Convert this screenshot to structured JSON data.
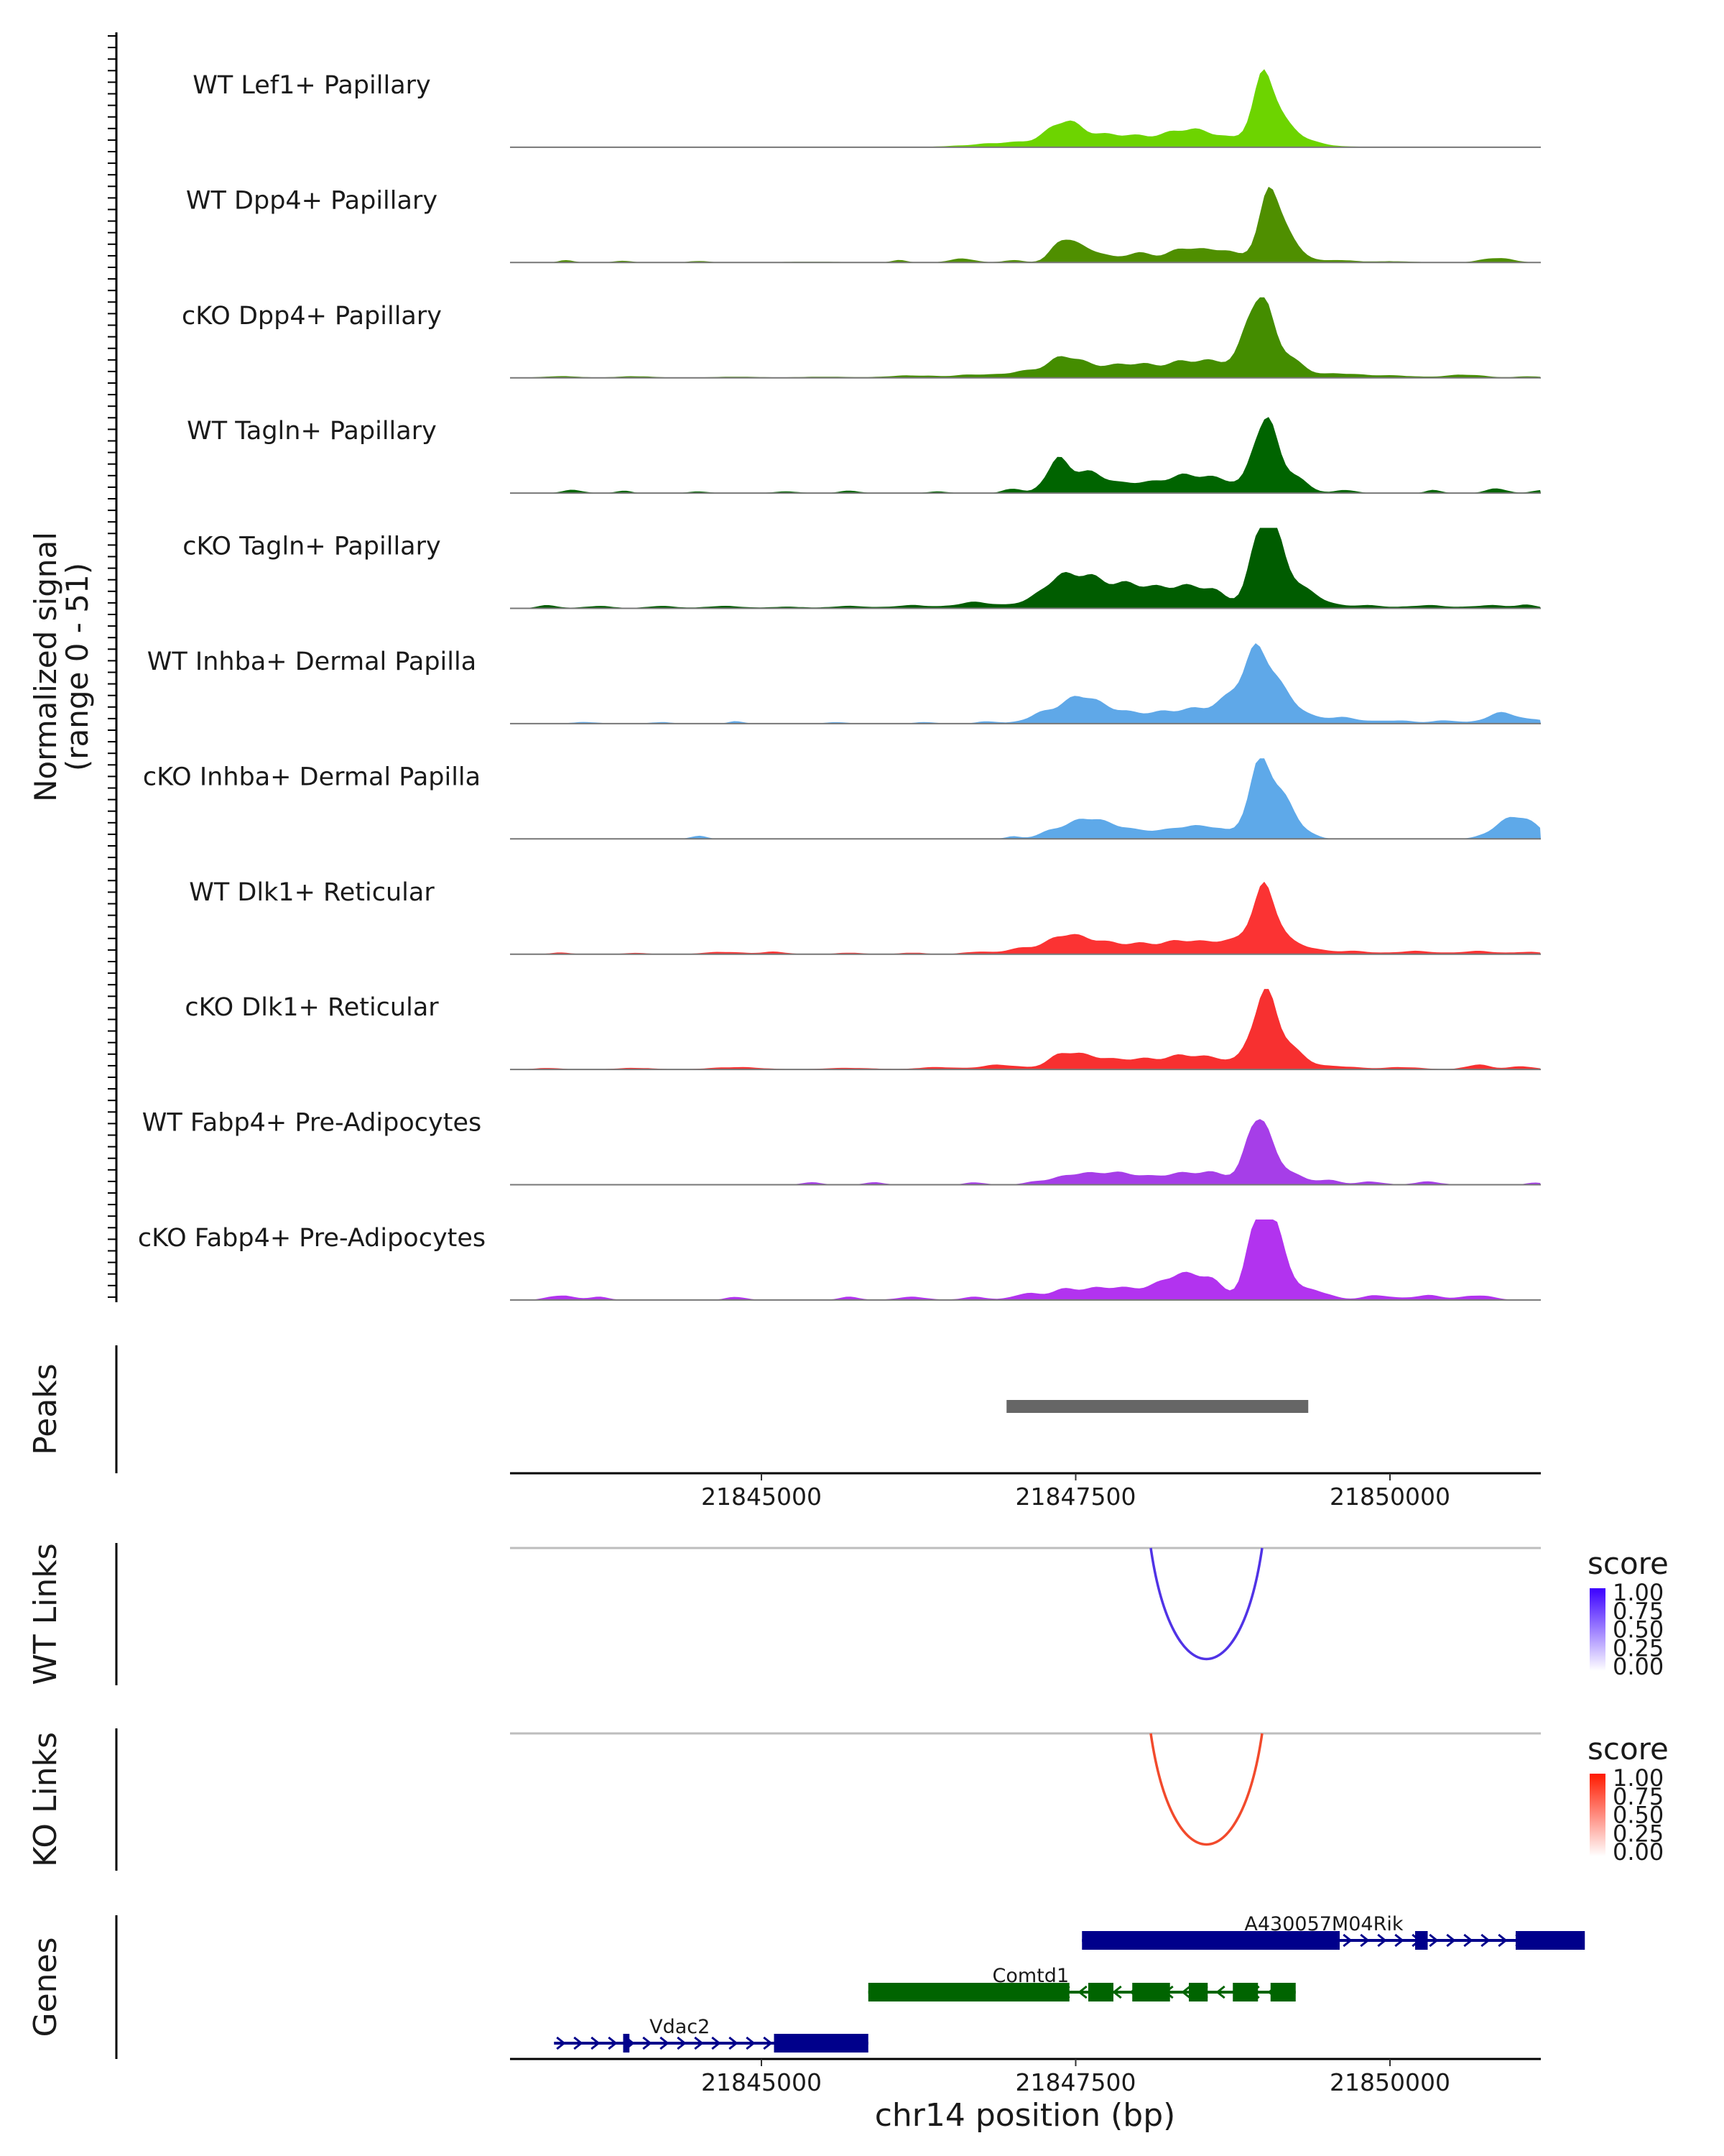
{
  "chart_data": {
    "type": "area",
    "description_free": true,
    "y_axis_label_line1": "Normalized signal",
    "y_axis_label_line2": "(range 0 - 51)",
    "signal_range": [
      0,
      51
    ],
    "x_range": [
      21843000,
      21851200
    ],
    "x_ticks": [
      21845000,
      21847500,
      21850000
    ],
    "x_tick_labels": [
      "21845000",
      "21847500",
      "21850000"
    ],
    "x_axis_title": "chr14 position (bp)",
    "tracks": [
      {
        "name": "WT Lef1+ Papillary",
        "color": "#6dd400",
        "peaks": [
          [
            21843300,
            0.3,
            300
          ],
          [
            21844300,
            0.3,
            300
          ],
          [
            21845400,
            0.4,
            400
          ],
          [
            21846700,
            0.6,
            300
          ],
          [
            21847000,
            2.5,
            250
          ],
          [
            21847400,
            11,
            120
          ],
          [
            21847600,
            7,
            250
          ],
          [
            21848000,
            5,
            200
          ],
          [
            21848350,
            7,
            150
          ],
          [
            21848600,
            7,
            200
          ],
          [
            21849000,
            39,
            90
          ],
          [
            21849150,
            12,
            150
          ],
          [
            21849450,
            1,
            150
          ],
          [
            21850000,
            0.4,
            300
          ],
          [
            21850900,
            0.4,
            300
          ]
        ]
      },
      {
        "name": "WT Dpp4+ Papillary",
        "color": "#4f8f00",
        "peaks": [
          [
            21843450,
            1.5,
            60
          ],
          [
            21843900,
            1,
            80
          ],
          [
            21844500,
            1,
            80
          ],
          [
            21845400,
            0.5,
            300
          ],
          [
            21846100,
            1.5,
            60
          ],
          [
            21846600,
            2.5,
            100
          ],
          [
            21847000,
            1.5,
            80
          ],
          [
            21847400,
            13,
            90
          ],
          [
            21847600,
            8,
            130
          ],
          [
            21848000,
            6,
            120
          ],
          [
            21848350,
            8,
            120
          ],
          [
            21848650,
            8,
            150
          ],
          [
            21849050,
            42,
            90
          ],
          [
            21849200,
            10,
            120
          ],
          [
            21849600,
            1.5,
            100
          ],
          [
            21850000,
            0.8,
            200
          ],
          [
            21850850,
            3,
            120
          ]
        ]
      },
      {
        "name": "cKO Dpp4+ Papillary",
        "color": "#448d00",
        "peaks": [
          [
            21843400,
            1,
            150
          ],
          [
            21844000,
            1,
            150
          ],
          [
            21844800,
            0.7,
            200
          ],
          [
            21845500,
            0.7,
            200
          ],
          [
            21846200,
            1.5,
            200
          ],
          [
            21846700,
            2,
            150
          ],
          [
            21847100,
            4,
            150
          ],
          [
            21847400,
            10,
            120
          ],
          [
            21847650,
            7,
            200
          ],
          [
            21848000,
            7,
            150
          ],
          [
            21848350,
            9,
            150
          ],
          [
            21848650,
            9,
            150
          ],
          [
            21848950,
            47,
            100
          ],
          [
            21849150,
            14,
            140
          ],
          [
            21849600,
            2.5,
            150
          ],
          [
            21850000,
            1.5,
            200
          ],
          [
            21850600,
            2,
            150
          ],
          [
            21851100,
            1,
            100
          ]
        ]
      },
      {
        "name": "WT Tagln+ Papillary",
        "color": "#006400",
        "peaks": [
          [
            21843500,
            2,
            80
          ],
          [
            21843900,
            1.5,
            60
          ],
          [
            21844500,
            1,
            80
          ],
          [
            21845200,
            1,
            100
          ],
          [
            21845700,
            1.5,
            80
          ],
          [
            21846400,
            1,
            80
          ],
          [
            21847000,
            3,
            70
          ],
          [
            21847350,
            18,
            90
          ],
          [
            21847600,
            13,
            150
          ],
          [
            21848000,
            6,
            150
          ],
          [
            21848350,
            10,
            150
          ],
          [
            21848650,
            8,
            150
          ],
          [
            21849000,
            45,
            90
          ],
          [
            21849200,
            12,
            120
          ],
          [
            21849650,
            2,
            80
          ],
          [
            21850350,
            2,
            60
          ],
          [
            21850850,
            3,
            80
          ],
          [
            21851200,
            2,
            70
          ]
        ]
      },
      {
        "name": "cKO Tagln+ Papillary",
        "color": "#005c00",
        "peaks": [
          [
            21843300,
            2,
            80
          ],
          [
            21843700,
            1.5,
            120
          ],
          [
            21844200,
            1.5,
            120
          ],
          [
            21844700,
            1.5,
            150
          ],
          [
            21845200,
            1,
            150
          ],
          [
            21845700,
            1.5,
            150
          ],
          [
            21846200,
            2,
            150
          ],
          [
            21846700,
            4,
            150
          ],
          [
            21847200,
            6,
            150
          ],
          [
            21847350,
            12,
            100
          ],
          [
            21847550,
            17,
            120
          ],
          [
            21847800,
            12,
            150
          ],
          [
            21848050,
            10,
            150
          ],
          [
            21848350,
            12,
            150
          ],
          [
            21848600,
            9,
            120
          ],
          [
            21849000,
            51,
            100
          ],
          [
            21849150,
            20,
            130
          ],
          [
            21849400,
            6,
            120
          ],
          [
            21849800,
            2,
            150
          ],
          [
            21850300,
            2,
            150
          ],
          [
            21850800,
            2,
            150
          ],
          [
            21851100,
            2,
            80
          ]
        ]
      },
      {
        "name": "WT Inhba+ Dermal Papilla",
        "color": "#5fa8e8",
        "peaks": [
          [
            21843600,
            1,
            100
          ],
          [
            21844200,
            1,
            80
          ],
          [
            21844800,
            1.5,
            60
          ],
          [
            21845600,
            1,
            80
          ],
          [
            21846300,
            1,
            80
          ],
          [
            21846800,
            1.5,
            80
          ],
          [
            21847300,
            8,
            150
          ],
          [
            21847550,
            14,
            120
          ],
          [
            21847800,
            8,
            150
          ],
          [
            21848150,
            6,
            150
          ],
          [
            21848450,
            8,
            150
          ],
          [
            21848750,
            14,
            130
          ],
          [
            21848950,
            38,
            110
          ],
          [
            21849150,
            16,
            140
          ],
          [
            21849600,
            4,
            150
          ],
          [
            21850050,
            2,
            150
          ],
          [
            21850450,
            2,
            100
          ],
          [
            21850900,
            7,
            130
          ],
          [
            21851200,
            2,
            80
          ]
        ]
      },
      {
        "name": "cKO Inhba+ Dermal Papilla",
        "color": "#5ea9e9",
        "peaks": [
          [
            21844500,
            2,
            60
          ],
          [
            21847000,
            1.5,
            60
          ],
          [
            21847350,
            6,
            120
          ],
          [
            21847600,
            12,
            120
          ],
          [
            21847850,
            7,
            120
          ],
          [
            21848100,
            4,
            100
          ],
          [
            21848350,
            7,
            120
          ],
          [
            21848600,
            7,
            120
          ],
          [
            21848950,
            35,
            90
          ],
          [
            21849100,
            28,
            120
          ],
          [
            21849300,
            3,
            100
          ],
          [
            21850900,
            8,
            120
          ],
          [
            21851050,
            10,
            100
          ],
          [
            21851200,
            3,
            80
          ]
        ]
      },
      {
        "name": "WT Dlk1+ Reticular",
        "color": "#fb3333",
        "peaks": [
          [
            21843400,
            1,
            80
          ],
          [
            21844000,
            0.8,
            100
          ],
          [
            21844700,
            1.5,
            150
          ],
          [
            21845100,
            1.5,
            100
          ],
          [
            21845700,
            1,
            100
          ],
          [
            21846200,
            1,
            100
          ],
          [
            21846700,
            1.5,
            100
          ],
          [
            21847100,
            4,
            150
          ],
          [
            21847400,
            10,
            120
          ],
          [
            21847650,
            8,
            150
          ],
          [
            21848000,
            6,
            150
          ],
          [
            21848350,
            8,
            150
          ],
          [
            21848700,
            8,
            150
          ],
          [
            21849000,
            40,
            100
          ],
          [
            21849250,
            6,
            150
          ],
          [
            21849700,
            2,
            150
          ],
          [
            21850200,
            2,
            150
          ],
          [
            21850700,
            2,
            150
          ],
          [
            21851100,
            1.5,
            100
          ]
        ]
      },
      {
        "name": "cKO Dlk1+ Reticular",
        "color": "#f73030",
        "peaks": [
          [
            21843300,
            1,
            100
          ],
          [
            21844000,
            1,
            150
          ],
          [
            21844800,
            1.5,
            200
          ],
          [
            21845700,
            1,
            200
          ],
          [
            21846400,
            1.5,
            150
          ],
          [
            21846900,
            3,
            150
          ],
          [
            21847400,
            9,
            120
          ],
          [
            21847650,
            7,
            150
          ],
          [
            21848000,
            6,
            150
          ],
          [
            21848350,
            8,
            150
          ],
          [
            21848650,
            6,
            150
          ],
          [
            21849000,
            45,
            100
          ],
          [
            21849200,
            12,
            130
          ],
          [
            21849600,
            2,
            150
          ],
          [
            21850100,
            1.5,
            150
          ],
          [
            21850700,
            3,
            100
          ],
          [
            21851050,
            2,
            100
          ]
        ]
      },
      {
        "name": "WT Fabp4+ Pre-Adipocytes",
        "color": "#a63ee8",
        "peaks": [
          [
            21845400,
            1.5,
            80
          ],
          [
            21845900,
            1.5,
            80
          ],
          [
            21846700,
            1.5,
            80
          ],
          [
            21847200,
            2,
            100
          ],
          [
            21847450,
            5,
            120
          ],
          [
            21847700,
            6,
            150
          ],
          [
            21847950,
            5,
            150
          ],
          [
            21848300,
            6,
            150
          ],
          [
            21848600,
            7,
            150
          ],
          [
            21848950,
            42,
            90
          ],
          [
            21849150,
            10,
            120
          ],
          [
            21849500,
            3,
            100
          ],
          [
            21849850,
            2,
            100
          ],
          [
            21850300,
            2,
            100
          ],
          [
            21851150,
            1.5,
            60
          ]
        ]
      },
      {
        "name": "cKO Fabp4+ Pre-Adipocytes",
        "color": "#b233ef",
        "peaks": [
          [
            21843400,
            3,
            100
          ],
          [
            21843700,
            2,
            80
          ],
          [
            21844800,
            2,
            80
          ],
          [
            21845700,
            2,
            80
          ],
          [
            21846200,
            2,
            120
          ],
          [
            21846700,
            2,
            100
          ],
          [
            21847100,
            4,
            100
          ],
          [
            21847400,
            6,
            120
          ],
          [
            21847700,
            7,
            150
          ],
          [
            21848000,
            6,
            150
          ],
          [
            21848300,
            14,
            130
          ],
          [
            21848550,
            13,
            120
          ],
          [
            21848950,
            45,
            90
          ],
          [
            21849100,
            35,
            100
          ],
          [
            21849400,
            6,
            120
          ],
          [
            21849900,
            3,
            120
          ],
          [
            21850300,
            3,
            120
          ],
          [
            21850700,
            3,
            120
          ]
        ]
      }
    ],
    "peaks_track": {
      "label": "Peaks",
      "color": "#666666",
      "regions": [
        [
          21846950,
          21849350
        ]
      ]
    },
    "links_tracks": [
      {
        "label": "WT Links",
        "color": "#5033e6",
        "score_gradient": [
          "#ffffff",
          "#3b00ff"
        ],
        "links": [
          {
            "start": 21848200,
            "end": 21849000,
            "score": 0.85
          }
        ]
      },
      {
        "label": "KO Links",
        "color": "#f24a2c",
        "score_gradient": [
          "#ffffff",
          "#ff1a00"
        ],
        "links": [
          {
            "start": 21848200,
            "end": 21849000,
            "score": 0.85
          }
        ]
      }
    ],
    "legend": {
      "title": "score",
      "ticks": [
        "1.00",
        "0.75",
        "0.50",
        "0.25",
        "0.00"
      ]
    },
    "genes_track": {
      "label": "Genes",
      "genes": [
        {
          "name": "A430057M04Rik",
          "color": "#00008b",
          "strand": "+",
          "start": 21847550,
          "end": 21851250,
          "exons": [
            [
              21847550,
              21849600
            ],
            [
              21850200,
              21850300
            ],
            [
              21851000,
              21851550
            ]
          ]
        },
        {
          "name": "Comtd1",
          "color": "#006400",
          "strand": "-",
          "start": 21845850,
          "end": 21849250,
          "exons": [
            [
              21845850,
              21847450
            ],
            [
              21847600,
              21847800
            ],
            [
              21847950,
              21848250
            ],
            [
              21848400,
              21848550
            ],
            [
              21848750,
              21848950
            ],
            [
              21849050,
              21849250
            ]
          ]
        },
        {
          "name": "Vdac2",
          "color": "#00008b",
          "strand": "+",
          "start": 21843350,
          "end": 21845850,
          "exons": [
            [
              21843900,
              21843950
            ],
            [
              21845100,
              21845850
            ]
          ]
        }
      ]
    }
  }
}
